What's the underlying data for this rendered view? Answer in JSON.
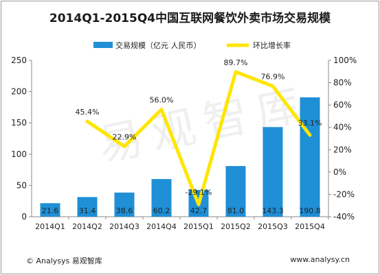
{
  "title": "2014Q1-2015Q4中国互联网餐饮外卖市场交易规模",
  "footer": {
    "left": "© Analysys 易观智库",
    "right": "www.analysy.cn"
  },
  "watermark": "易观智库",
  "chart_data": {
    "type": "bar",
    "categories": [
      "2014Q1",
      "2014Q2",
      "2014Q3",
      "2014Q4",
      "2015Q1",
      "2015Q2",
      "2015Q3",
      "2015Q4"
    ],
    "series": [
      {
        "name": "交易规模（亿元 人民币）",
        "type": "bar",
        "axis": "left",
        "color": "#1f8fd6",
        "values": [
          21.6,
          31.4,
          38.6,
          60.2,
          42.7,
          81.0,
          143.3,
          190.8
        ],
        "labels": [
          "21.6",
          "31.4",
          "38.6",
          "60.2",
          "42.7",
          "81.0",
          "143.3",
          "190.8"
        ]
      },
      {
        "name": "环比增长率",
        "type": "line",
        "axis": "right",
        "color": "#ffe500",
        "values": [
          null,
          45.4,
          22.9,
          56.0,
          -29.1,
          89.7,
          76.9,
          33.1
        ],
        "labels": [
          "",
          "45.4%",
          "22.9%",
          "56.0%",
          "-29.1%",
          "89.7%",
          "76.9%",
          "33.1%"
        ]
      }
    ],
    "y_left": {
      "min": 0,
      "max": 250,
      "ticks": [
        "0",
        "50",
        "100",
        "150",
        "200",
        "250"
      ]
    },
    "y_right": {
      "min": -40,
      "max": 100,
      "ticks": [
        "-40%",
        "-20%",
        "0%",
        "20%",
        "40%",
        "60%",
        "80%",
        "100%"
      ]
    },
    "legend": "top",
    "grid": false
  }
}
